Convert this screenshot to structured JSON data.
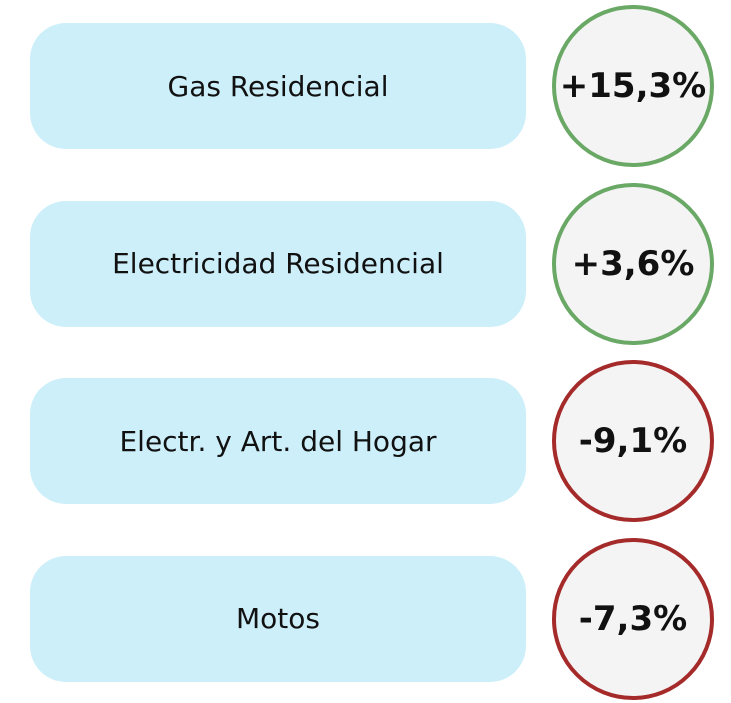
{
  "items": [
    {
      "label": "Gas Residencial",
      "value": "+15,3%",
      "color": "#6aa865"
    },
    {
      "label": "Electricidad Residencial",
      "value": "+3,6%",
      "color": "#6aa865"
    },
    {
      "label": "Electr. y Art. del Hogar",
      "value": "-9,1%",
      "color": "#a52a2a"
    },
    {
      "label": "Motos",
      "value": "-7,3%",
      "color": "#a52a2a"
    }
  ]
}
